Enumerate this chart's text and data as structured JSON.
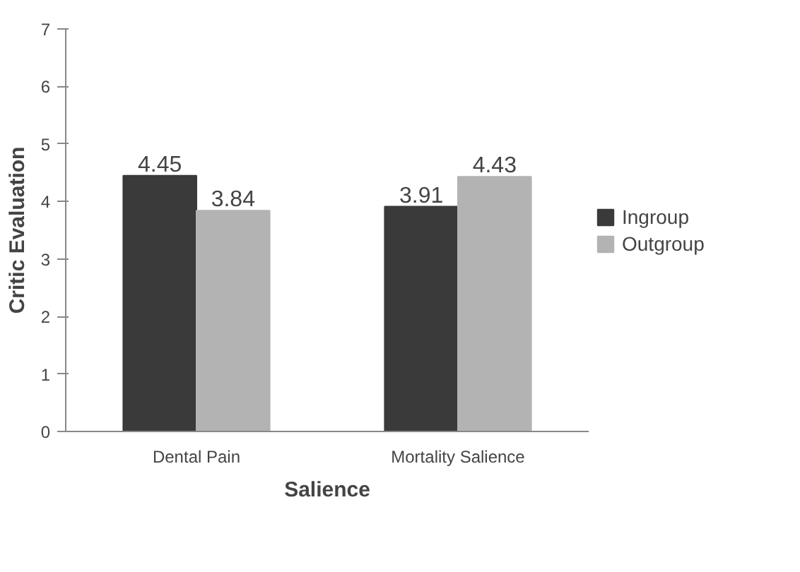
{
  "chart_data": {
    "type": "bar",
    "xlabel": "Salience",
    "ylabel": "Critic Evaluation",
    "categories": [
      "Dental Pain",
      "Mortality Salience"
    ],
    "series": [
      {
        "name": "Ingroup",
        "color": "#3a3a3a",
        "values": [
          4.45,
          3.91
        ]
      },
      {
        "name": "Outgroup",
        "color": "#b3b3b3",
        "values": [
          3.84,
          4.43
        ]
      }
    ],
    "ylim": [
      0,
      7
    ],
    "yticks": [
      0,
      1,
      2,
      3,
      4,
      5,
      6,
      7
    ],
    "grid": false,
    "legend": "right",
    "data_labels": true
  }
}
